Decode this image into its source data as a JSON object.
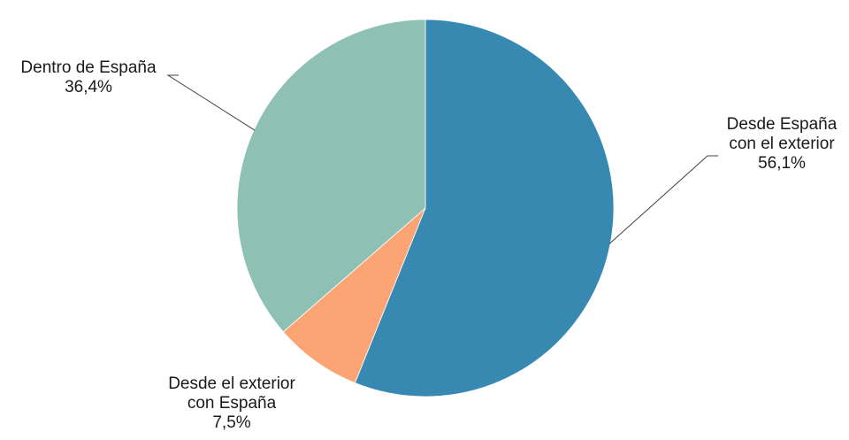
{
  "chart_data": {
    "type": "pie",
    "title": "",
    "slices": [
      {
        "name": "Desde España con el exterior",
        "value": 56.1,
        "label_lines": [
          "Desde España",
          "con el exterior",
          "56,1%"
        ],
        "color": "#3789b2"
      },
      {
        "name": "Desde el exterior con España",
        "value": 7.5,
        "label_lines": [
          "Desde el exterior",
          "con España",
          "7,5%"
        ],
        "color": "#fca474"
      },
      {
        "name": "Dentro de España",
        "value": 36.4,
        "label_lines": [
          "Dentro de España",
          "36,4%"
        ],
        "color": "#8fc0b4"
      }
    ],
    "start_angle_deg": 0,
    "direction": "clockwise",
    "legend": "none"
  }
}
